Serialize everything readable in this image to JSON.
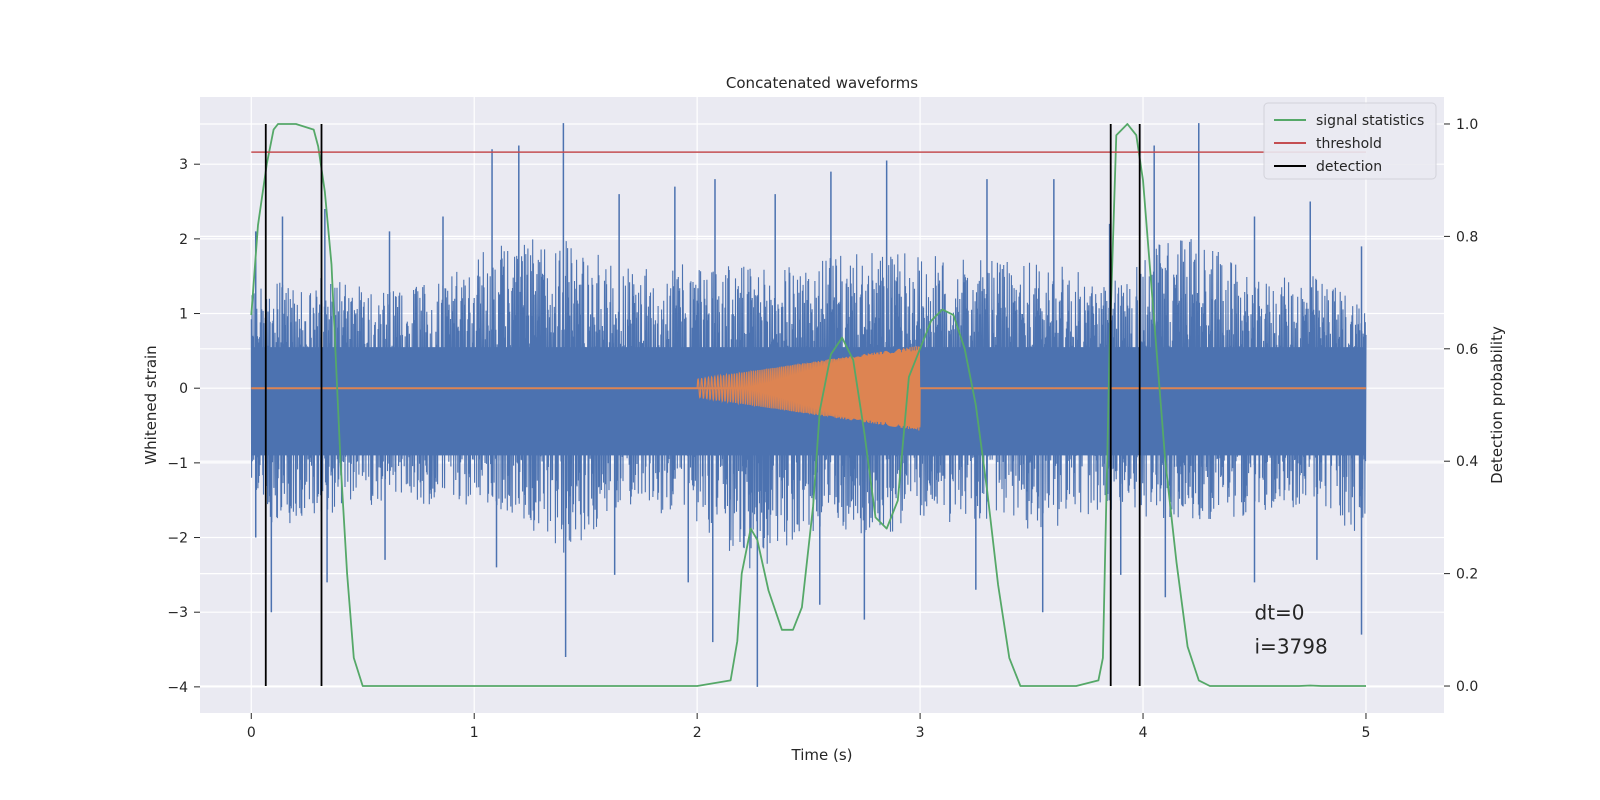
{
  "chart_data": {
    "type": "line",
    "title": "Concatenated waveforms",
    "xlabel": "Time (s)",
    "ylabel": "Whitened strain",
    "y2label": "Detection probability",
    "xlim": [
      -0.23,
      5.35
    ],
    "ylim": [
      -4.35,
      3.9
    ],
    "y2lim": [
      -0.048,
      1.048
    ],
    "xticks": [
      0,
      1,
      2,
      3,
      4,
      5
    ],
    "yticks": [
      3,
      2,
      1,
      0,
      -1,
      -2,
      -3,
      -4
    ],
    "y2ticks": [
      1.0,
      0.8,
      0.6,
      0.4,
      0.2,
      0.0
    ],
    "xtick_labels": [
      "0",
      "1",
      "2",
      "3",
      "4",
      "5"
    ],
    "ytick_labels": [
      "3",
      "2",
      "1",
      "0",
      "−1",
      "−2",
      "−3",
      "−4"
    ],
    "y2tick_labels": [
      "1.0",
      "0.8",
      "0.6",
      "0.4",
      "0.2",
      "0.0"
    ],
    "grid": true,
    "legend_position": "top-right",
    "series": [
      {
        "key": "strain",
        "kind": "noise",
        "axis": "left",
        "color": "#4c72b0",
        "x_range": [
          0,
          5
        ],
        "band": [
          -0.9,
          0.55
        ],
        "upper_peaks": [
          {
            "x": 0.02,
            "y": 2.1
          },
          {
            "x": 0.14,
            "y": 2.3
          },
          {
            "x": 0.33,
            "y": 2.4
          },
          {
            "x": 0.62,
            "y": 2.1
          },
          {
            "x": 0.86,
            "y": 2.3
          },
          {
            "x": 1.08,
            "y": 3.2
          },
          {
            "x": 1.2,
            "y": 3.25
          },
          {
            "x": 1.4,
            "y": 3.55
          },
          {
            "x": 1.65,
            "y": 2.6
          },
          {
            "x": 1.9,
            "y": 2.7
          },
          {
            "x": 2.08,
            "y": 2.8
          },
          {
            "x": 2.35,
            "y": 2.6
          },
          {
            "x": 2.6,
            "y": 2.9
          },
          {
            "x": 2.85,
            "y": 3.05
          },
          {
            "x": 3.3,
            "y": 2.8
          },
          {
            "x": 3.6,
            "y": 2.8
          },
          {
            "x": 3.85,
            "y": 2.2
          },
          {
            "x": 4.05,
            "y": 3.25
          },
          {
            "x": 4.25,
            "y": 3.55
          },
          {
            "x": 4.5,
            "y": 2.3
          },
          {
            "x": 4.75,
            "y": 2.5
          },
          {
            "x": 4.98,
            "y": 1.9
          }
        ],
        "lower_peaks": [
          {
            "x": 0.02,
            "y": -2.0
          },
          {
            "x": 0.09,
            "y": -3.0
          },
          {
            "x": 0.34,
            "y": -2.6
          },
          {
            "x": 0.6,
            "y": -2.3
          },
          {
            "x": 1.1,
            "y": -2.4
          },
          {
            "x": 1.41,
            "y": -3.6
          },
          {
            "x": 1.63,
            "y": -2.5
          },
          {
            "x": 1.96,
            "y": -2.6
          },
          {
            "x": 2.07,
            "y": -3.4
          },
          {
            "x": 2.27,
            "y": -4.0
          },
          {
            "x": 2.55,
            "y": -2.9
          },
          {
            "x": 2.75,
            "y": -3.1
          },
          {
            "x": 3.25,
            "y": -2.7
          },
          {
            "x": 3.55,
            "y": -3.0
          },
          {
            "x": 3.9,
            "y": -2.5
          },
          {
            "x": 4.1,
            "y": -2.8
          },
          {
            "x": 4.5,
            "y": -2.6
          },
          {
            "x": 4.78,
            "y": -2.3
          },
          {
            "x": 4.98,
            "y": -3.3
          }
        ]
      },
      {
        "key": "injection",
        "kind": "chirp",
        "axis": "left",
        "color": "#dd8452",
        "baseline": 0.0,
        "x_range": [
          2.0,
          3.0
        ],
        "amplitude_start": 0.12,
        "amplitude_end": 0.57
      },
      {
        "key": "signal",
        "name": "signal statistics",
        "kind": "line",
        "axis": "right",
        "color": "#55a868",
        "x": [
          0.0,
          0.03,
          0.07,
          0.1,
          0.12,
          0.2,
          0.28,
          0.3,
          0.33,
          0.36,
          0.4,
          0.43,
          0.46,
          0.5,
          1.0,
          2.0,
          2.15,
          2.18,
          2.2,
          2.24,
          2.27,
          2.32,
          2.38,
          2.43,
          2.47,
          2.52,
          2.55,
          2.6,
          2.65,
          2.7,
          2.75,
          2.8,
          2.85,
          2.9,
          2.95,
          3.05,
          3.1,
          3.15,
          3.2,
          3.25,
          3.3,
          3.35,
          3.4,
          3.45,
          3.5,
          3.7,
          3.8,
          3.82,
          3.85,
          3.88,
          3.93,
          3.97,
          4.0,
          4.03,
          4.06,
          4.1,
          4.15,
          4.2,
          4.25,
          4.3,
          4.4,
          4.7,
          4.75,
          4.8,
          5.0
        ],
        "values": [
          0.66,
          0.82,
          0.93,
          0.99,
          1.0,
          1.0,
          0.99,
          0.96,
          0.88,
          0.75,
          0.4,
          0.2,
          0.05,
          0.0,
          0.0,
          0.0,
          0.01,
          0.08,
          0.2,
          0.28,
          0.26,
          0.17,
          0.1,
          0.1,
          0.14,
          0.32,
          0.49,
          0.59,
          0.62,
          0.58,
          0.45,
          0.3,
          0.28,
          0.33,
          0.55,
          0.65,
          0.67,
          0.66,
          0.6,
          0.5,
          0.35,
          0.18,
          0.05,
          0.0,
          0.0,
          0.0,
          0.01,
          0.05,
          0.6,
          0.98,
          1.0,
          0.98,
          0.9,
          0.75,
          0.6,
          0.4,
          0.22,
          0.07,
          0.01,
          0.0,
          0.0,
          0.0,
          0.001,
          0.0,
          0.0
        ]
      },
      {
        "key": "threshold",
        "name": "threshold",
        "kind": "hline",
        "axis": "right",
        "color": "#c44e52",
        "value": 0.95,
        "x_range": [
          0.0,
          5.0
        ]
      },
      {
        "key": "detection",
        "name": "detection",
        "kind": "vlines",
        "axis": "right",
        "color": "#000000",
        "x": [
          0.065,
          0.315,
          3.855,
          3.985
        ],
        "y_range": [
          0.0,
          1.0
        ]
      }
    ],
    "legend": [
      {
        "key": "signal",
        "label": "signal statistics",
        "color": "#55a868"
      },
      {
        "key": "threshold",
        "label": "threshold",
        "color": "#c44e52"
      },
      {
        "key": "detection",
        "label": "detection",
        "color": "#000000"
      }
    ],
    "annotations": [
      {
        "text": "dt=0",
        "x": 4.5,
        "y": -3.1
      },
      {
        "text": "i=3798",
        "x": 4.5,
        "y": -3.55
      }
    ],
    "colors": {
      "plot_background": "#eaeaf2",
      "grid": "#ffffff",
      "text": "#262626"
    }
  }
}
